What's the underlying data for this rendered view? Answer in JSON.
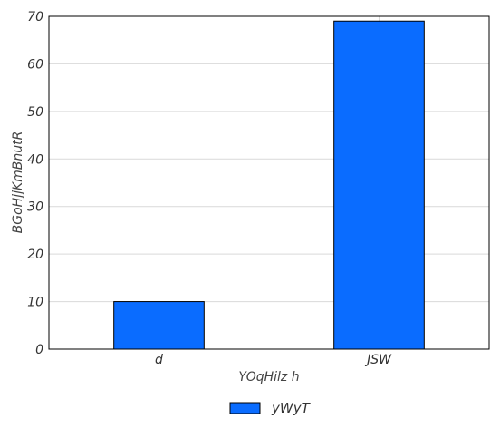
{
  "chart_data": {
    "type": "bar",
    "categories": [
      "d",
      "JSW"
    ],
    "series": [
      {
        "name": "yWyT",
        "values": [
          10,
          69
        ],
        "color": "#0a6cff"
      }
    ],
    "xlabel": "YOqHilz  h",
    "ylabel": "BGoHjjKmBnutR",
    "ylim": [
      0,
      70
    ],
    "yticks": [
      0,
      10,
      20,
      30,
      40,
      50,
      60,
      70
    ],
    "grid": true,
    "legend_position": "bottom-center"
  }
}
